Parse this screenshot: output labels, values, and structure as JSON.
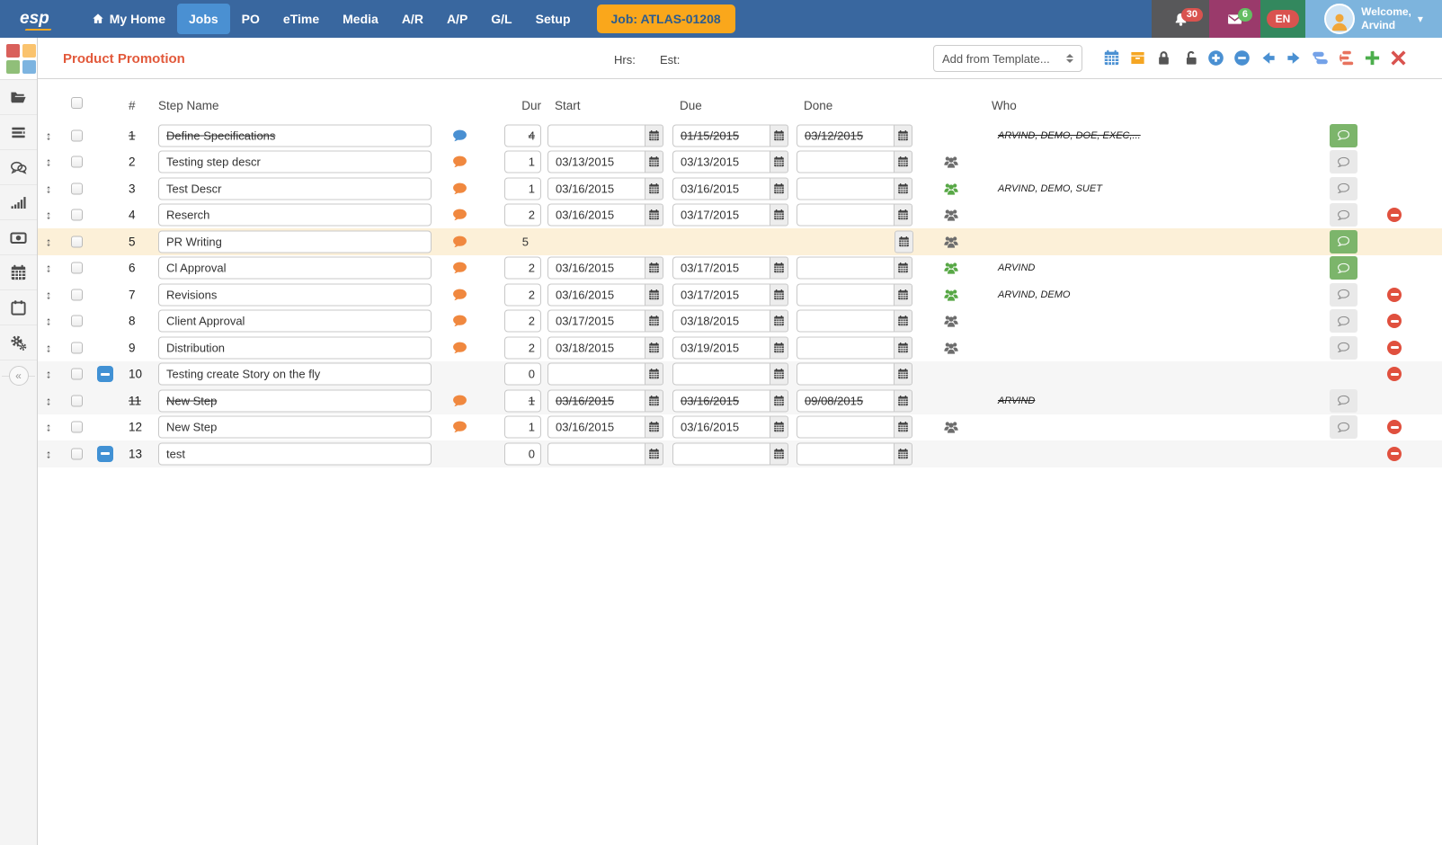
{
  "navbar": {
    "brand": "esp",
    "items": [
      {
        "label": "My Home",
        "icon": "home-icon",
        "active": false
      },
      {
        "label": "Jobs",
        "active": true
      },
      {
        "label": "PO",
        "active": false
      },
      {
        "label": "eTime",
        "active": false
      },
      {
        "label": "Media",
        "active": false
      },
      {
        "label": "A/R",
        "active": false
      },
      {
        "label": "A/P",
        "active": false
      },
      {
        "label": "G/L",
        "active": false
      },
      {
        "label": "Setup",
        "active": false
      }
    ],
    "job_button": "Job: ATLAS-01208",
    "notifications_count": "30",
    "messages_count": "6",
    "language": "EN",
    "welcome_line1": "Welcome,",
    "welcome_line2": "Arvind"
  },
  "toolbar": {
    "title": "Product Promotion",
    "hrs_label": "Hrs:",
    "est_label": "Est:",
    "template_select": "Add from Template...",
    "icons": [
      "calendar-icon",
      "archive-box-icon",
      "lock-icon",
      "unlock-icon",
      "collapse-plus-icon",
      "collapse-minus-icon",
      "arrow-left-icon",
      "arrow-right-icon",
      "workflow-icon",
      "reorder-steps-icon",
      "add-step-icon",
      "close-icon"
    ]
  },
  "sidebar": {
    "icons": [
      "folder-open-icon",
      "list-icon",
      "chat-bubbles-icon",
      "bar-chart-icon",
      "money-icon",
      "calendar-grid-icon",
      "calendar-blank-icon",
      "gears-icon"
    ],
    "collapse_glyph": "«"
  },
  "table": {
    "headers": {
      "num": "#",
      "step_name": "Step Name",
      "dur": "Dur",
      "start": "Start",
      "due": "Due",
      "done": "Done",
      "who": "Who"
    },
    "steps": [
      {
        "num": "1",
        "name": "Define Specifications",
        "comment": "blue",
        "collapsed": false,
        "editing": false,
        "dur": "4",
        "start": "",
        "due": "01/15/2015",
        "done": "03/12/2015",
        "users": null,
        "who": "ARVIND, DEMO, DOE, EXEC,...",
        "chat": "green",
        "del": false,
        "struck": true,
        "gray": false,
        "highlight": false
      },
      {
        "num": "2",
        "name": "Testing step descr",
        "comment": "orange",
        "collapsed": false,
        "editing": false,
        "dur": "1",
        "start": "03/13/2015",
        "due": "03/13/2015",
        "done": "",
        "users": "gray",
        "who": "",
        "chat": "gray",
        "del": false,
        "struck": false,
        "gray": false,
        "highlight": false
      },
      {
        "num": "3",
        "name": "Test Descr",
        "comment": "orange",
        "collapsed": false,
        "editing": false,
        "dur": "1",
        "start": "03/16/2015",
        "due": "03/16/2015",
        "done": "",
        "users": "green",
        "who": "ARVIND, DEMO, SUET",
        "chat": "gray",
        "del": false,
        "struck": false,
        "gray": false,
        "highlight": false
      },
      {
        "num": "4",
        "name": "Reserch",
        "comment": "orange",
        "collapsed": false,
        "editing": false,
        "dur": "2",
        "start": "03/16/2015",
        "due": "03/17/2015",
        "done": "",
        "users": "gray",
        "who": "",
        "chat": "gray",
        "del": true,
        "struck": false,
        "gray": false,
        "highlight": false
      },
      {
        "num": "5",
        "name": "PR Writing",
        "comment": "orange",
        "collapsed": false,
        "editing": true,
        "dur": "5",
        "start": "",
        "due": "",
        "done": "",
        "users": "gray",
        "who": "",
        "chat": "green",
        "del": false,
        "struck": false,
        "gray": false,
        "highlight": true
      },
      {
        "num": "6",
        "name": "Cl Approval",
        "comment": "orange",
        "collapsed": false,
        "editing": false,
        "dur": "2",
        "start": "03/16/2015",
        "due": "03/17/2015",
        "done": "",
        "users": "green",
        "who": "ARVIND",
        "chat": "green",
        "del": false,
        "struck": false,
        "gray": false,
        "highlight": false
      },
      {
        "num": "7",
        "name": "Revisions",
        "comment": "orange",
        "collapsed": false,
        "editing": false,
        "dur": "2",
        "start": "03/16/2015",
        "due": "03/17/2015",
        "done": "",
        "users": "green",
        "who": "ARVIND, DEMO",
        "chat": "gray",
        "del": true,
        "struck": false,
        "gray": false,
        "highlight": false
      },
      {
        "num": "8",
        "name": "Client Approval",
        "comment": "orange",
        "collapsed": false,
        "editing": false,
        "dur": "2",
        "start": "03/17/2015",
        "due": "03/18/2015",
        "done": "",
        "users": "gray",
        "who": "",
        "chat": "gray",
        "del": true,
        "struck": false,
        "gray": false,
        "highlight": false
      },
      {
        "num": "9",
        "name": "Distribution",
        "comment": "orange",
        "collapsed": false,
        "editing": false,
        "dur": "2",
        "start": "03/18/2015",
        "due": "03/19/2015",
        "done": "",
        "users": "gray",
        "who": "",
        "chat": "gray",
        "del": true,
        "struck": false,
        "gray": false,
        "highlight": false
      },
      {
        "num": "10",
        "name": "Testing create Story on the fly",
        "comment": null,
        "collapsed": true,
        "editing": false,
        "dur": "0",
        "start": "",
        "due": "",
        "done": "",
        "users": null,
        "who": "",
        "chat": null,
        "del": true,
        "struck": false,
        "gray": true,
        "highlight": false
      },
      {
        "num": "11",
        "name": "New Step",
        "comment": "orange",
        "collapsed": false,
        "editing": false,
        "dur": "1",
        "start": "03/16/2015",
        "due": "03/16/2015",
        "done": "09/08/2015",
        "users": null,
        "who": "ARVIND",
        "chat": "gray",
        "del": false,
        "struck": true,
        "gray": true,
        "highlight": false
      },
      {
        "num": "12",
        "name": "New Step",
        "comment": "orange",
        "collapsed": false,
        "editing": false,
        "dur": "1",
        "start": "03/16/2015",
        "due": "03/16/2015",
        "done": "",
        "users": "gray",
        "who": "",
        "chat": "gray",
        "del": true,
        "struck": false,
        "gray": false,
        "highlight": false
      },
      {
        "num": "13",
        "name": "test",
        "comment": null,
        "collapsed": true,
        "editing": false,
        "dur": "0",
        "start": "",
        "due": "",
        "done": "",
        "users": null,
        "who": "",
        "chat": null,
        "del": true,
        "struck": false,
        "gray": true,
        "highlight": false
      }
    ]
  },
  "colors": {
    "navbar_bg": "#39679f",
    "nav_active_bg": "#4a90d2",
    "job_button_bg": "#faa71b",
    "job_button_text": "#2c5c8f",
    "notif_section_bg": "#58585a",
    "mail_section_bg": "#9a3a6b",
    "lang_section_bg": "#33885e",
    "user_section_bg": "#7db4dd",
    "badge_red": "#d9534f",
    "badge_green": "#63bd62",
    "title_orange": "#e2593b",
    "row_highlight": "#fcf0d8",
    "row_gray": "#f6f6f6",
    "comment_orange": "#f0883f",
    "comment_blue": "#4a90d2",
    "users_green": "#58a846",
    "users_gray": "#6d6d6d",
    "chat_green": "#7cb56b",
    "delete_red": "#e0503e",
    "toggle_blue": "#4191d4",
    "logo_squares": [
      "#d9605b",
      "#fac36e",
      "#90bf79",
      "#7db4e0"
    ]
  }
}
